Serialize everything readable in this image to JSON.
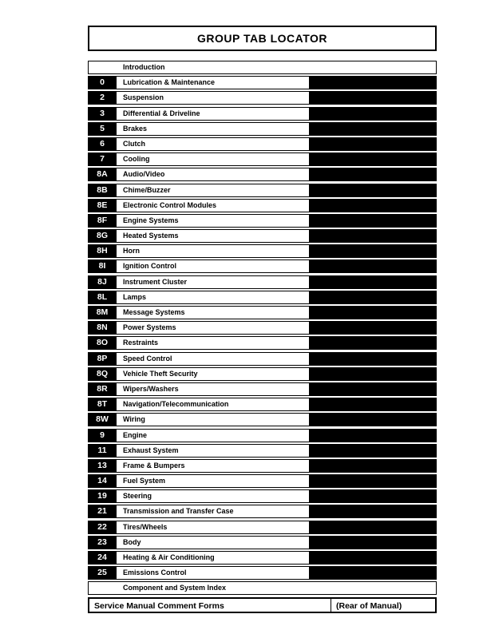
{
  "title": "GROUP TAB LOCATOR",
  "rows": [
    {
      "tab": "",
      "label": "Introduction",
      "endbar": false
    },
    {
      "tab": "0",
      "label": "Lubrication & Maintenance",
      "endbar": true
    },
    {
      "tab": "2",
      "label": "Suspension",
      "endbar": true
    },
    {
      "tab": "3",
      "label": "Differential & Driveline",
      "endbar": true
    },
    {
      "tab": "5",
      "label": "Brakes",
      "endbar": true
    },
    {
      "tab": "6",
      "label": "Clutch",
      "endbar": true
    },
    {
      "tab": "7",
      "label": "Cooling",
      "endbar": true
    },
    {
      "tab": "8A",
      "label": "Audio/Video",
      "endbar": true
    },
    {
      "tab": "8B",
      "label": "Chime/Buzzer",
      "endbar": true
    },
    {
      "tab": "8E",
      "label": "Electronic Control Modules",
      "endbar": true
    },
    {
      "tab": "8F",
      "label": "Engine Systems",
      "endbar": true
    },
    {
      "tab": "8G",
      "label": "Heated Systems",
      "endbar": true
    },
    {
      "tab": "8H",
      "label": "Horn",
      "endbar": true
    },
    {
      "tab": "8I",
      "label": "Ignition Control",
      "endbar": true
    },
    {
      "tab": "8J",
      "label": "Instrument Cluster",
      "endbar": true
    },
    {
      "tab": "8L",
      "label": "Lamps",
      "endbar": true
    },
    {
      "tab": "8M",
      "label": "Message Systems",
      "endbar": true
    },
    {
      "tab": "8N",
      "label": "Power Systems",
      "endbar": true
    },
    {
      "tab": "8O",
      "label": "Restraints",
      "endbar": true
    },
    {
      "tab": "8P",
      "label": "Speed Control",
      "endbar": true
    },
    {
      "tab": "8Q",
      "label": "Vehicle Theft Security",
      "endbar": true
    },
    {
      "tab": "8R",
      "label": "Wipers/Washers",
      "endbar": true
    },
    {
      "tab": "8T",
      "label": "Navigation/Telecommunication",
      "endbar": true
    },
    {
      "tab": "8W",
      "label": "Wiring",
      "endbar": true
    },
    {
      "tab": "9",
      "label": "Engine",
      "endbar": true
    },
    {
      "tab": "11",
      "label": "Exhaust System",
      "endbar": true
    },
    {
      "tab": "13",
      "label": "Frame & Bumpers",
      "endbar": true
    },
    {
      "tab": "14",
      "label": "Fuel System",
      "endbar": true
    },
    {
      "tab": "19",
      "label": "Steering",
      "endbar": true
    },
    {
      "tab": "21",
      "label": "Transmission and Transfer Case",
      "endbar": true
    },
    {
      "tab": "22",
      "label": "Tires/Wheels",
      "endbar": true
    },
    {
      "tab": "23",
      "label": "Body",
      "endbar": true
    },
    {
      "tab": "24",
      "label": "Heating & Air Conditioning",
      "endbar": true
    },
    {
      "tab": "25",
      "label": "Emissions Control",
      "endbar": true
    },
    {
      "tab": "",
      "label": "Component and System Index",
      "endbar": false
    }
  ],
  "footer": {
    "left": "Service Manual Comment Forms",
    "right": "(Rear of Manual)"
  },
  "colors": {
    "bg": "#ffffff",
    "fg": "#000000"
  }
}
